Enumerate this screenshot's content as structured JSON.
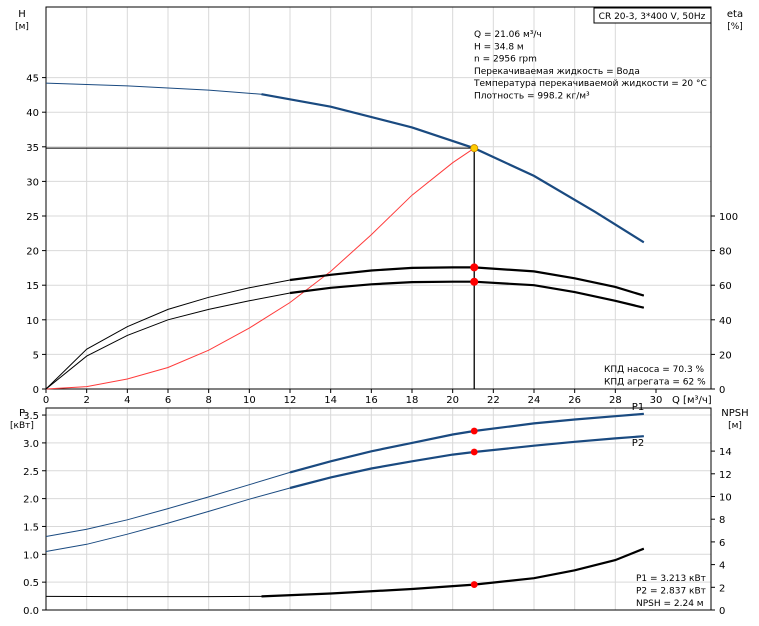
{
  "chart_data": [
    {
      "type": "line",
      "panel": "top",
      "xlabel": "Q [м³/ч]",
      "y_left_label": [
        "H",
        "[м]"
      ],
      "y_right_label": [
        "eta",
        "[%]"
      ],
      "xlim": [
        0,
        30
      ],
      "x_ticks": [
        0,
        2,
        4,
        6,
        8,
        10,
        12,
        14,
        16,
        18,
        20,
        22,
        24,
        26,
        28,
        30
      ],
      "ylim_left": [
        0,
        50
      ],
      "y_ticks_left": [
        0,
        5,
        10,
        15,
        20,
        25,
        30,
        35,
        40,
        45
      ],
      "ylim_right": [
        0,
        200
      ],
      "y_ticks_right": [
        0,
        20,
        40,
        60,
        80,
        100
      ],
      "grid": true,
      "title_box": "CR 20-3, 3*400 V, 50Hz",
      "info": [
        "Q = 21.06 м³/ч",
        "H = 34.8 м",
        "n = 2956 rpm",
        "Перекачиваемая жидкость = Вода",
        "Температура перекачиваемой жидкости = 20 °C",
        "Плотность = 998.2 кг/м³"
      ],
      "notes": [
        "КПД насоса = 70.3 %",
        "КПД агрегата = 62 %"
      ],
      "series": [
        {
          "axis": "left",
          "color": "#1a4a80",
          "x": [
            0,
            4,
            8,
            10.6,
            14,
            18,
            21.06,
            24,
            27,
            29.4
          ],
          "values": [
            44.2,
            43.8,
            43.2,
            42.6,
            40.8,
            37.8,
            34.8,
            30.8,
            25.6,
            21.2
          ]
        },
        {
          "axis": "left",
          "color": "#ff3b3b",
          "x": [
            0,
            2,
            4,
            6,
            8,
            10,
            12,
            14,
            16,
            18,
            20,
            21.06
          ],
          "values": [
            0,
            0.35,
            1.45,
            3.1,
            5.6,
            8.8,
            12.5,
            17.0,
            22.3,
            28.0,
            32.7,
            34.8
          ]
        },
        {
          "axis": "right",
          "color": "#000000",
          "x": [
            0,
            2,
            4,
            6,
            8,
            10,
            12,
            14,
            16,
            18,
            20,
            21.06,
            24,
            26,
            28,
            29.4
          ],
          "values": [
            0,
            23,
            36,
            46,
            53,
            58.5,
            63,
            66,
            68.5,
            70,
            70.3,
            70.3,
            68,
            64,
            59,
            54
          ]
        },
        {
          "axis": "right",
          "color": "#000000",
          "x": [
            0,
            2,
            4,
            6,
            8,
            10,
            12,
            14,
            16,
            18,
            20,
            21.06,
            24,
            26,
            28,
            29.4
          ],
          "values": [
            0,
            19,
            31,
            40,
            46,
            51,
            55.5,
            58.5,
            60.5,
            61.8,
            62,
            62,
            60,
            56,
            51,
            47
          ]
        }
      ],
      "markers": [
        {
          "axis": "left",
          "x": 21.06,
          "value": 34.8,
          "color": "#ffcc00"
        },
        {
          "axis": "right",
          "x": 21.06,
          "value": 70.3,
          "color": "#ff0000"
        },
        {
          "axis": "right",
          "x": 21.06,
          "value": 62,
          "color": "#ff0000"
        }
      ],
      "duty_point": {
        "x": 21.06,
        "value": 34.8
      }
    },
    {
      "type": "line",
      "panel": "bottom",
      "y_left_label": [
        "P",
        "[кВт]"
      ],
      "y_right_label": [
        "NPSH",
        "[м]"
      ],
      "xlim": [
        0,
        30
      ],
      "x_ticks": [
        0,
        2,
        4,
        6,
        8,
        10,
        12,
        14,
        16,
        18,
        20,
        22,
        24,
        26,
        28,
        30
      ],
      "ylim_left": [
        0,
        4
      ],
      "y_ticks_left": [
        "0.0",
        "0.5",
        "1.0",
        "1.5",
        "2.0",
        "2.5",
        "3.0",
        "3.5"
      ],
      "ylim_right": [
        0,
        16
      ],
      "y_ticks_right": [
        0,
        2,
        4,
        6,
        8,
        10,
        12,
        14
      ],
      "grid": true,
      "notes": [
        "P1 = 3.213 кВт",
        "P2 = 2.837 кВт",
        "NPSH = 2.24 м"
      ],
      "series": [
        {
          "name": "P1",
          "axis": "left",
          "color": "#1a4a80",
          "x": [
            0,
            2,
            4,
            6,
            8,
            10,
            12,
            14,
            16,
            18,
            20,
            21.06,
            24,
            26,
            28,
            29.4
          ],
          "values": [
            1.32,
            1.45,
            1.62,
            1.82,
            2.03,
            2.25,
            2.47,
            2.67,
            2.85,
            3.0,
            3.15,
            3.213,
            3.35,
            3.42,
            3.48,
            3.52
          ]
        },
        {
          "name": "P2",
          "axis": "left",
          "color": "#1a4a80",
          "x": [
            0,
            2,
            4,
            6,
            8,
            10,
            12,
            14,
            16,
            18,
            20,
            21.06,
            24,
            26,
            28,
            29.4
          ],
          "values": [
            1.05,
            1.18,
            1.36,
            1.56,
            1.77,
            1.99,
            2.19,
            2.38,
            2.54,
            2.67,
            2.79,
            2.837,
            2.95,
            3.02,
            3.08,
            3.12
          ]
        },
        {
          "axis": "right",
          "color": "#000000",
          "x": [
            0,
            4,
            8,
            10.6,
            14,
            18,
            21.06,
            24,
            26,
            28,
            29.4
          ],
          "values": [
            1.2,
            1.18,
            1.18,
            1.2,
            1.45,
            1.85,
            2.24,
            2.8,
            3.5,
            4.4,
            5.4
          ]
        }
      ],
      "markers": [
        {
          "axis": "left",
          "x": 21.06,
          "value": 3.213,
          "color": "#ff0000"
        },
        {
          "axis": "left",
          "x": 21.06,
          "value": 2.837,
          "color": "#ff0000"
        },
        {
          "axis": "right",
          "x": 21.06,
          "value": 2.24,
          "color": "#ff0000"
        }
      ]
    }
  ]
}
